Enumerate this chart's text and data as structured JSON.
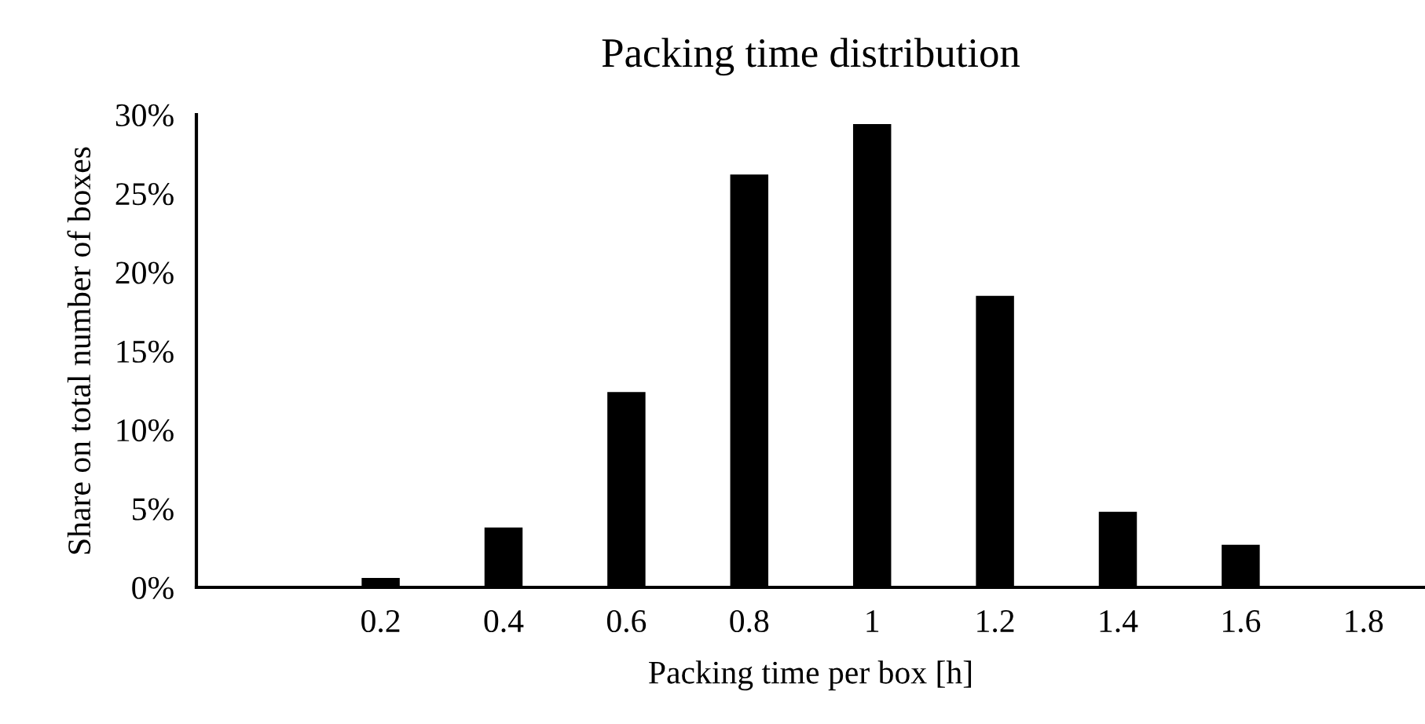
{
  "chart_data": {
    "type": "bar",
    "title": "Packing time distribution",
    "xlabel": "Packing time per box [h]",
    "ylabel": "Share on total number of boxes",
    "categories": [
      null,
      "0.2",
      "0.4",
      "0.6",
      "0.8",
      "1",
      "1.2",
      "1.4",
      "1.6",
      "1.8"
    ],
    "values": [
      0,
      0.6,
      3.8,
      12.4,
      26.2,
      29.4,
      18.5,
      4.8,
      2.7,
      0
    ],
    "color": "#000000",
    "ylim": [
      0,
      30
    ],
    "yticks": [
      {
        "value": 0,
        "label": "0%"
      },
      {
        "value": 5,
        "label": "5%"
      },
      {
        "value": 10,
        "label": "10%"
      },
      {
        "value": 15,
        "label": "15%"
      },
      {
        "value": 20,
        "label": "20%"
      },
      {
        "value": 25,
        "label": "25%"
      },
      {
        "value": 30,
        "label": "30%"
      }
    ],
    "grid": false,
    "legend": false
  }
}
